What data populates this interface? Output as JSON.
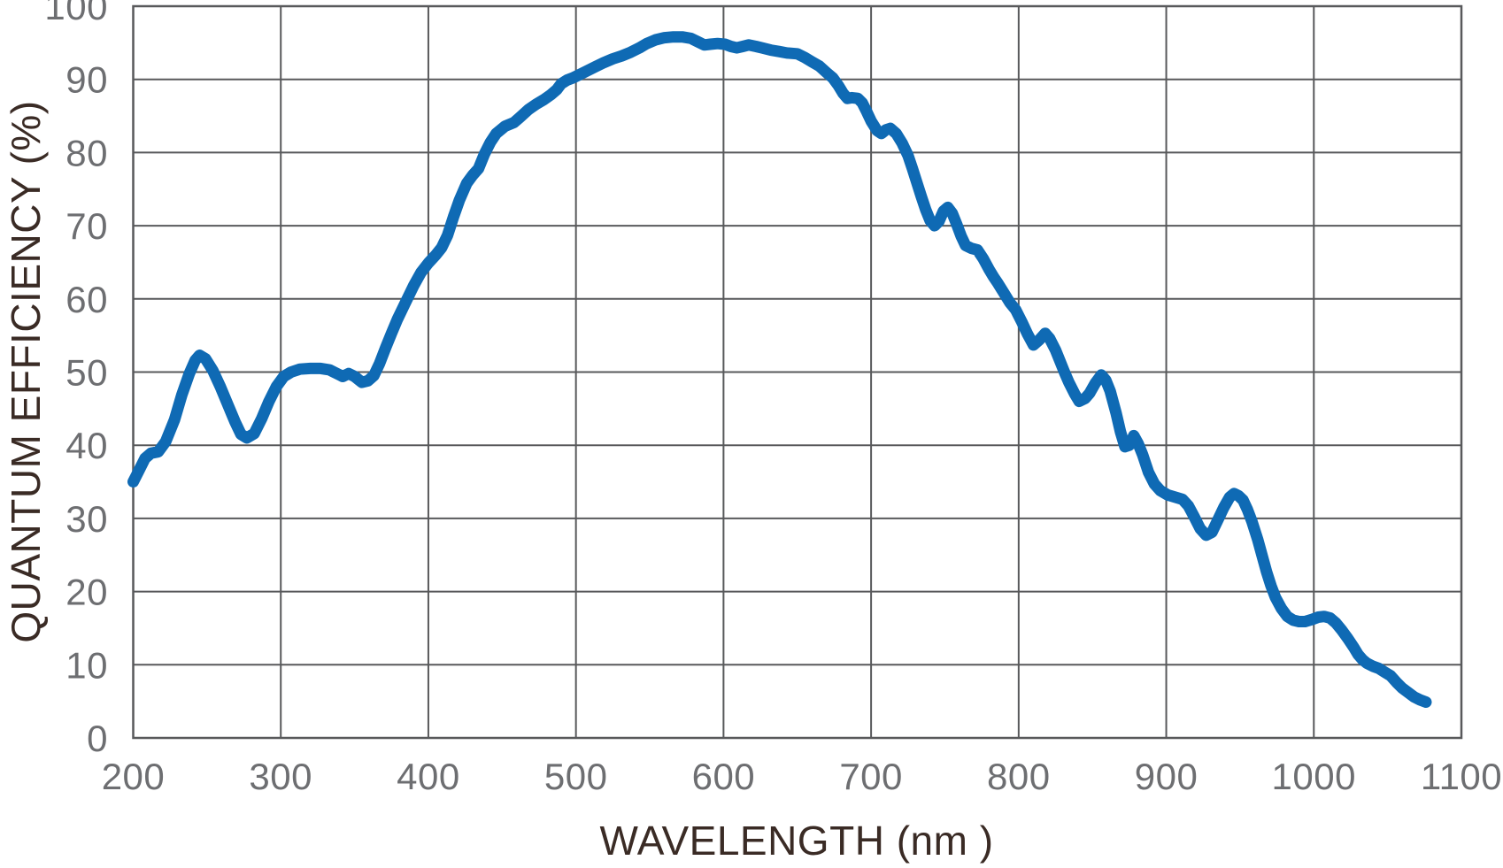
{
  "page": {
    "background": "#ffffff"
  },
  "style": {
    "curve_color": "#0f6ab4",
    "grid_color": "#58595b",
    "tick_label_color": "#6d6e71",
    "axis_title_color": "#3a2b25",
    "background": "#ffffff"
  },
  "chart_data": {
    "type": "line",
    "title": "",
    "xlabel": "WAVELENGTH (nm )",
    "ylabel": "QUANTUM EFFICIENCY (%)",
    "grid": true,
    "legend": "none",
    "x_axis": {
      "min": 200,
      "max": 1100,
      "ticks": [
        200,
        300,
        400,
        500,
        600,
        700,
        800,
        900,
        1000,
        1100
      ]
    },
    "y_axis": {
      "min": 0,
      "max": 100,
      "ticks": [
        0,
        10,
        20,
        30,
        40,
        50,
        60,
        70,
        80,
        90,
        100
      ]
    },
    "series": [
      {
        "name": "quantum efficiency",
        "color": "#0f6ab4",
        "points": [
          [
            200,
            35.0
          ],
          [
            204,
            36.6
          ],
          [
            208,
            38.2
          ],
          [
            212,
            38.9
          ],
          [
            217,
            39.1
          ],
          [
            222,
            40.5
          ],
          [
            228,
            43.5
          ],
          [
            233,
            46.9
          ],
          [
            238,
            49.8
          ],
          [
            242,
            51.6
          ],
          [
            245,
            52.3
          ],
          [
            249,
            51.8
          ],
          [
            254,
            50.2
          ],
          [
            259,
            48.0
          ],
          [
            264,
            45.6
          ],
          [
            269,
            43.2
          ],
          [
            273,
            41.5
          ],
          [
            277,
            41.0
          ],
          [
            282,
            41.6
          ],
          [
            287,
            43.6
          ],
          [
            292,
            46.0
          ],
          [
            297,
            48.0
          ],
          [
            302,
            49.4
          ],
          [
            307,
            50.0
          ],
          [
            313,
            50.4
          ],
          [
            320,
            50.5
          ],
          [
            327,
            50.5
          ],
          [
            333,
            50.3
          ],
          [
            338,
            49.8
          ],
          [
            342,
            49.4
          ],
          [
            346,
            49.8
          ],
          [
            350,
            49.4
          ],
          [
            355,
            48.6
          ],
          [
            359,
            48.8
          ],
          [
            363,
            49.5
          ],
          [
            367,
            51.2
          ],
          [
            371,
            53.3
          ],
          [
            375,
            55.3
          ],
          [
            379,
            57.2
          ],
          [
            384,
            59.3
          ],
          [
            390,
            61.8
          ],
          [
            395,
            63.6
          ],
          [
            400,
            64.9
          ],
          [
            405,
            66.0
          ],
          [
            409,
            67.0
          ],
          [
            413,
            68.7
          ],
          [
            417,
            71.2
          ],
          [
            421,
            73.5
          ],
          [
            426,
            75.8
          ],
          [
            430,
            76.9
          ],
          [
            434,
            77.8
          ],
          [
            438,
            79.8
          ],
          [
            442,
            81.4
          ],
          [
            446,
            82.6
          ],
          [
            452,
            83.6
          ],
          [
            458,
            84.1
          ],
          [
            462,
            84.8
          ],
          [
            468,
            85.9
          ],
          [
            473,
            86.6
          ],
          [
            478,
            87.2
          ],
          [
            483,
            87.9
          ],
          [
            487,
            88.6
          ],
          [
            490,
            89.4
          ],
          [
            494,
            89.9
          ],
          [
            498,
            90.2
          ],
          [
            503,
            90.7
          ],
          [
            507,
            91.1
          ],
          [
            513,
            91.7
          ],
          [
            519,
            92.3
          ],
          [
            525,
            92.8
          ],
          [
            531,
            93.2
          ],
          [
            537,
            93.7
          ],
          [
            543,
            94.3
          ],
          [
            548,
            94.9
          ],
          [
            554,
            95.4
          ],
          [
            560,
            95.7
          ],
          [
            566,
            95.8
          ],
          [
            572,
            95.8
          ],
          [
            578,
            95.6
          ],
          [
            583,
            95.1
          ],
          [
            587,
            94.7
          ],
          [
            591,
            94.8
          ],
          [
            596,
            94.9
          ],
          [
            601,
            94.8
          ],
          [
            605,
            94.5
          ],
          [
            609,
            94.3
          ],
          [
            613,
            94.5
          ],
          [
            617,
            94.7
          ],
          [
            622,
            94.5
          ],
          [
            626,
            94.3
          ],
          [
            632,
            94.0
          ],
          [
            638,
            93.8
          ],
          [
            643,
            93.6
          ],
          [
            650,
            93.5
          ],
          [
            655,
            93.0
          ],
          [
            660,
            92.4
          ],
          [
            665,
            91.8
          ],
          [
            670,
            90.9
          ],
          [
            674,
            90.2
          ],
          [
            678,
            89.1
          ],
          [
            681,
            88.1
          ],
          [
            684,
            87.4
          ],
          [
            687,
            87.5
          ],
          [
            691,
            87.4
          ],
          [
            694,
            86.8
          ],
          [
            697,
            85.6
          ],
          [
            700,
            84.3
          ],
          [
            704,
            83.0
          ],
          [
            707,
            82.6
          ],
          [
            710,
            83.1
          ],
          [
            713,
            83.3
          ],
          [
            717,
            82.6
          ],
          [
            721,
            81.3
          ],
          [
            725,
            79.6
          ],
          [
            728,
            77.8
          ],
          [
            731,
            75.9
          ],
          [
            734,
            74.0
          ],
          [
            737,
            72.2
          ],
          [
            740,
            70.7
          ],
          [
            743,
            70.0
          ],
          [
            746,
            70.6
          ],
          [
            749,
            72.0
          ],
          [
            752,
            72.5
          ],
          [
            755,
            71.7
          ],
          [
            758,
            70.2
          ],
          [
            761,
            68.6
          ],
          [
            764,
            67.3
          ],
          [
            768,
            66.9
          ],
          [
            772,
            66.7
          ],
          [
            776,
            65.5
          ],
          [
            780,
            64.0
          ],
          [
            783,
            63.0
          ],
          [
            786,
            62.1
          ],
          [
            790,
            60.8
          ],
          [
            794,
            59.5
          ],
          [
            798,
            58.5
          ],
          [
            802,
            56.9
          ],
          [
            806,
            55.2
          ],
          [
            810,
            53.7
          ],
          [
            814,
            54.4
          ],
          [
            818,
            55.3
          ],
          [
            821,
            54.6
          ],
          [
            825,
            53.0
          ],
          [
            828,
            51.5
          ],
          [
            831,
            50.0
          ],
          [
            834,
            48.6
          ],
          [
            838,
            47.0
          ],
          [
            841,
            46.0
          ],
          [
            845,
            46.4
          ],
          [
            848,
            47.1
          ],
          [
            852,
            48.5
          ],
          [
            856,
            49.6
          ],
          [
            859,
            48.9
          ],
          [
            862,
            47.4
          ],
          [
            866,
            44.4
          ],
          [
            869,
            41.8
          ],
          [
            872,
            39.8
          ],
          [
            875,
            40.0
          ],
          [
            878,
            41.3
          ],
          [
            881,
            40.2
          ],
          [
            884,
            38.7
          ],
          [
            888,
            36.3
          ],
          [
            892,
            34.7
          ],
          [
            896,
            33.8
          ],
          [
            901,
            33.2
          ],
          [
            906,
            32.9
          ],
          [
            911,
            32.6
          ],
          [
            915,
            31.7
          ],
          [
            919,
            30.2
          ],
          [
            923,
            28.6
          ],
          [
            927,
            27.7
          ],
          [
            931,
            28.1
          ],
          [
            935,
            29.8
          ],
          [
            939,
            31.5
          ],
          [
            943,
            32.9
          ],
          [
            946,
            33.4
          ],
          [
            949,
            33.1
          ],
          [
            952,
            32.5
          ],
          [
            955,
            31.2
          ],
          [
            958,
            29.6
          ],
          [
            962,
            27.1
          ],
          [
            965,
            24.9
          ],
          [
            968,
            22.7
          ],
          [
            971,
            20.8
          ],
          [
            974,
            19.2
          ],
          [
            978,
            17.7
          ],
          [
            982,
            16.6
          ],
          [
            986,
            16.1
          ],
          [
            990,
            15.9
          ],
          [
            994,
            15.9
          ],
          [
            999,
            16.2
          ],
          [
            1003,
            16.5
          ],
          [
            1007,
            16.6
          ],
          [
            1011,
            16.4
          ],
          [
            1015,
            15.7
          ],
          [
            1019,
            14.7
          ],
          [
            1023,
            13.6
          ],
          [
            1027,
            12.4
          ],
          [
            1030,
            11.4
          ],
          [
            1033,
            10.7
          ],
          [
            1036,
            10.2
          ],
          [
            1040,
            9.8
          ],
          [
            1044,
            9.5
          ],
          [
            1048,
            9.0
          ],
          [
            1052,
            8.5
          ],
          [
            1056,
            7.6
          ],
          [
            1060,
            6.8
          ],
          [
            1064,
            6.2
          ],
          [
            1068,
            5.6
          ],
          [
            1072,
            5.2
          ],
          [
            1076,
            4.9
          ]
        ]
      }
    ]
  }
}
